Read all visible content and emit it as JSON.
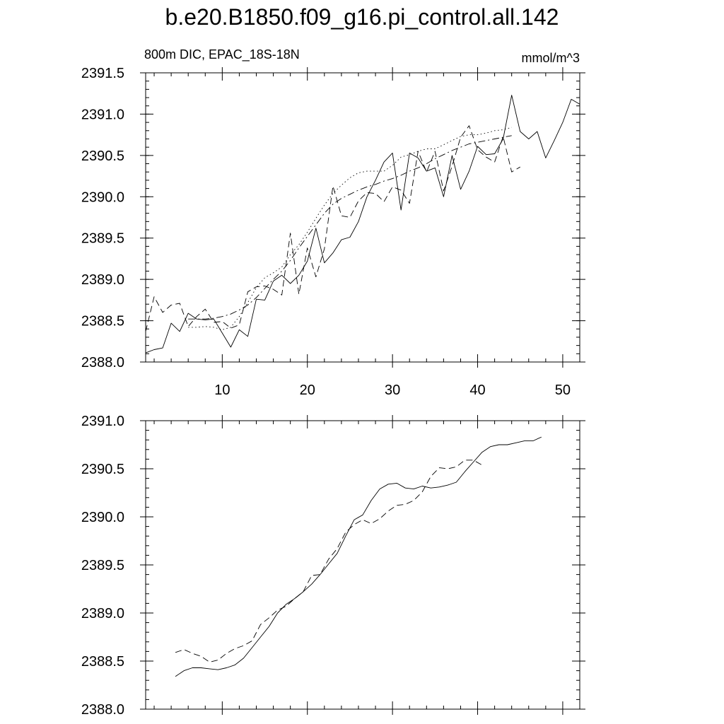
{
  "title": "b.e20.B1850.f09_g16.pi_control.all.142",
  "chart_data": [
    {
      "type": "line",
      "left_label": "800m DIC, EPAC_18S-18N",
      "right_label": "mmol/m^3",
      "xlim": [
        1,
        52
      ],
      "ylim": [
        2388.0,
        2391.5
      ],
      "x_ticks": [
        10,
        20,
        30,
        40,
        50
      ],
      "x_tick_labels": [
        "10",
        "20",
        "30",
        "40",
        "50"
      ],
      "y_ticks": [
        2388.0,
        2388.5,
        2389.0,
        2389.5,
        2390.0,
        2390.5,
        2391.0,
        2391.5
      ],
      "y_tick_labels": [
        "2388.0",
        "2388.5",
        "2389.0",
        "2389.5",
        "2390.0",
        "2390.5",
        "2391.0",
        "2391.5"
      ],
      "grid": false,
      "series": [
        {
          "style": "solid",
          "x_start": 1,
          "values": [
            2388.11,
            2388.15,
            2388.17,
            2388.47,
            2388.37,
            2388.59,
            2388.52,
            2388.51,
            2388.52,
            2388.35,
            2388.18,
            2388.39,
            2388.31,
            2388.76,
            2388.75,
            2388.98,
            2389.05,
            2388.95,
            2389.05,
            2389.22,
            2389.62,
            2389.2,
            2389.32,
            2389.48,
            2389.51,
            2389.7,
            2390.0,
            2390.2,
            2390.42,
            2390.53,
            2389.84,
            2390.53,
            2390.47,
            2390.31,
            2390.35,
            2390.0,
            2390.5,
            2390.09,
            2390.31,
            2390.61,
            2390.51,
            2390.52,
            2390.7,
            2391.23,
            2390.79,
            2390.7,
            2390.79,
            2390.47,
            2390.68,
            2390.9,
            2391.18,
            2391.12
          ]
        },
        {
          "style": "dash",
          "x_start": 1,
          "values": [
            2388.37,
            2388.79,
            2388.6,
            2388.69,
            2388.71,
            2388.43,
            2388.55,
            2388.64,
            2388.48,
            2388.49,
            2388.41,
            2388.45,
            2388.85,
            2388.91,
            2388.92,
            2388.88,
            2388.81,
            2389.56,
            2388.82,
            2389.38,
            2389.03,
            2389.37,
            2390.13,
            2389.77,
            2389.75,
            2389.95,
            2390.05,
            2390.04,
            2389.94,
            2390.12,
            2390.08,
            2389.92,
            2390.55,
            2390.3,
            2390.55,
            2390.07,
            2390.37,
            2390.72,
            2390.86,
            2390.57,
            2390.48,
            2390.42,
            2390.73,
            2390.3,
            2390.36
          ]
        },
        {
          "style": "dot",
          "x_start": 6,
          "values": [
            2388.42,
            2388.42,
            2388.43,
            2388.42,
            2388.39,
            2388.42,
            2388.55,
            2388.72,
            2388.9,
            2389.02,
            2389.08,
            2389.15,
            2389.3,
            2389.42,
            2389.57,
            2389.74,
            2389.9,
            2390.04,
            2390.14,
            2390.23,
            2390.29,
            2390.31,
            2390.31,
            2390.31,
            2390.38,
            2390.48,
            2390.51,
            2390.55,
            2390.58,
            2390.58,
            2390.63,
            2390.68,
            2390.73,
            2390.75,
            2390.75,
            2390.77,
            2390.8,
            2390.81,
            2390.84
          ]
        },
        {
          "style": "dashdot",
          "x_start": 6,
          "values": [
            2388.52,
            2388.52,
            2388.52,
            2388.53,
            2388.55,
            2388.58,
            2388.63,
            2388.69,
            2388.78,
            2388.89,
            2389.0,
            2389.1,
            2389.23,
            2389.38,
            2389.52,
            2389.66,
            2389.8,
            2389.91,
            2389.98,
            2390.03,
            2390.08,
            2390.12,
            2390.15,
            2390.19,
            2390.22,
            2390.26,
            2390.31,
            2390.35,
            2390.4,
            2390.46,
            2390.51,
            2390.56,
            2390.6,
            2390.64,
            2390.66,
            2390.68,
            2390.7,
            2390.72,
            2390.74
          ]
        }
      ]
    },
    {
      "type": "line",
      "xlim": [
        1,
        52
      ],
      "ylim": [
        2388.0,
        2391.0
      ],
      "x_ticks": [
        10,
        20,
        30,
        40,
        50
      ],
      "y_ticks": [
        2388.0,
        2388.5,
        2389.0,
        2389.5,
        2390.0,
        2390.5,
        2391.0
      ],
      "y_tick_labels": [
        "2388.0",
        "2388.5",
        "2389.0",
        "2389.5",
        "2390.0",
        "2390.5",
        "2391.0"
      ],
      "grid": false,
      "series": [
        {
          "style": "solid",
          "x_start": 4.5,
          "values": [
            2388.34,
            2388.4,
            2388.43,
            2388.43,
            2388.42,
            2388.41,
            2388.43,
            2388.46,
            2388.53,
            2388.64,
            2388.75,
            2388.86,
            2389.0,
            2389.09,
            2389.15,
            2389.22,
            2389.3,
            2389.4,
            2389.51,
            2389.62,
            2389.8,
            2389.97,
            2390.02,
            2390.17,
            2390.29,
            2390.34,
            2390.35,
            2390.3,
            2390.29,
            2390.32,
            2390.3,
            2390.31,
            2390.33,
            2390.36,
            2390.47,
            2390.57,
            2390.67,
            2390.73,
            2390.75,
            2390.75,
            2390.77,
            2390.79,
            2390.79,
            2390.83
          ]
        },
        {
          "style": "dash",
          "x_start": 4.5,
          "values": [
            2388.59,
            2388.62,
            2388.58,
            2388.55,
            2388.49,
            2388.51,
            2388.58,
            2388.63,
            2388.66,
            2388.71,
            2388.88,
            2388.95,
            2389.03,
            2389.07,
            2389.15,
            2389.22,
            2389.39,
            2389.4,
            2389.56,
            2389.67,
            2389.84,
            2389.92,
            2389.97,
            2389.93,
            2389.98,
            2390.06,
            2390.12,
            2390.13,
            2390.17,
            2390.26,
            2390.42,
            2390.51,
            2390.5,
            2390.52,
            2390.59,
            2390.59,
            2390.54
          ]
        }
      ]
    }
  ]
}
